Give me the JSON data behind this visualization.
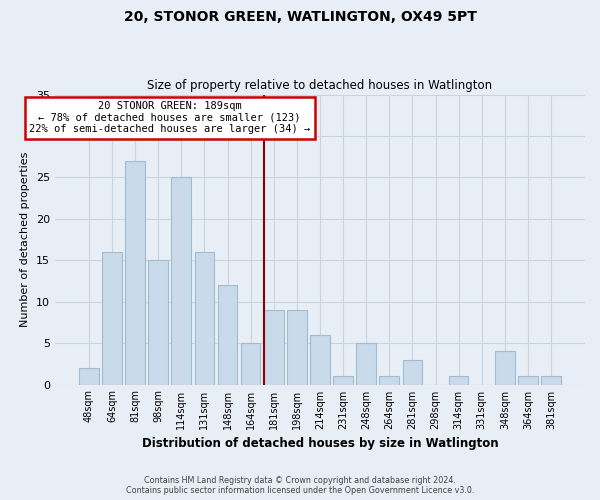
{
  "title": "20, STONOR GREEN, WATLINGTON, OX49 5PT",
  "subtitle": "Size of property relative to detached houses in Watlington",
  "xlabel": "Distribution of detached houses by size in Watlington",
  "ylabel": "Number of detached properties",
  "categories": [
    "48sqm",
    "64sqm",
    "81sqm",
    "98sqm",
    "114sqm",
    "131sqm",
    "148sqm",
    "164sqm",
    "181sqm",
    "198sqm",
    "214sqm",
    "231sqm",
    "248sqm",
    "264sqm",
    "281sqm",
    "298sqm",
    "314sqm",
    "331sqm",
    "348sqm",
    "364sqm",
    "381sqm"
  ],
  "values": [
    2,
    16,
    27,
    15,
    25,
    16,
    12,
    5,
    9,
    9,
    6,
    1,
    5,
    1,
    3,
    0,
    1,
    0,
    4,
    1,
    1
  ],
  "bar_color": "#c9daea",
  "bar_edge_color": "#a0bdd0",
  "reference_line_x": 8,
  "annotation_title": "20 STONOR GREEN: 189sqm",
  "annotation_line1": "← 78% of detached houses are smaller (123)",
  "annotation_line2": "22% of semi-detached houses are larger (34) →",
  "annotation_box_color": "#ffffff",
  "annotation_box_edge_color": "#cc0000",
  "ylim": [
    0,
    35
  ],
  "yticks": [
    0,
    5,
    10,
    15,
    20,
    25,
    30,
    35
  ],
  "background_color": "#e8eef5",
  "grid_color": "#c8d4e0",
  "footer_line1": "Contains HM Land Registry data © Crown copyright and database right 2024.",
  "footer_line2": "Contains public sector information licensed under the Open Government Licence v3.0."
}
